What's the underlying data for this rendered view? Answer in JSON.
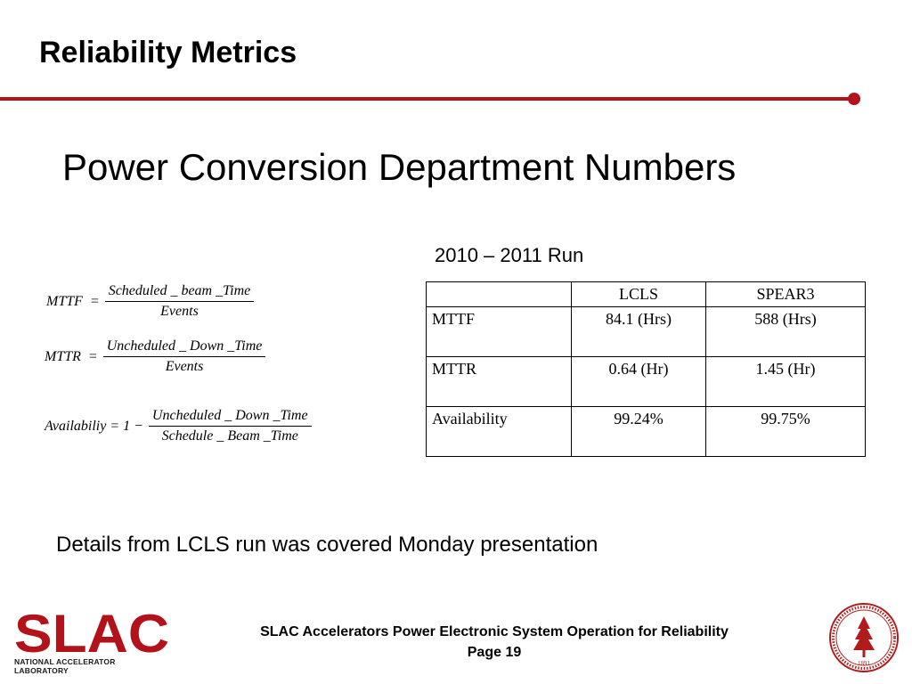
{
  "slide": {
    "title": "Reliability Metrics",
    "heading": "Power Conversion Department Numbers",
    "run_label": "2010 – 2011 Run",
    "details": "Details from LCLS run was covered Monday presentation"
  },
  "formulas": {
    "mttf": {
      "lhs": "MTTF  =",
      "numerator": "Scheduled _ beam _Time",
      "denominator": "Events"
    },
    "mttr": {
      "lhs": "MTTR  =",
      "numerator": "Uncheduled _ Down _Time",
      "denominator": "Events"
    },
    "availability": {
      "lhs": "Availabiliy = 1 −",
      "numerator": "Uncheduled _ Down _Time",
      "denominator": "Schedule _ Beam _Time"
    }
  },
  "table": {
    "headers": [
      "",
      "LCLS",
      "SPEAR3"
    ],
    "rows": [
      [
        "MTTF",
        "84.1 (Hrs)",
        "588 (Hrs)"
      ],
      [
        "MTTR",
        "0.64 (Hr)",
        "1.45 (Hr)"
      ],
      [
        "Availability",
        "99.24%",
        "99.75%"
      ]
    ]
  },
  "logo": {
    "text": "SLAC",
    "subtitle": "NATIONAL ACCELERATOR LABORATORY"
  },
  "seal": {
    "year": "1891"
  },
  "footer": {
    "line1": "SLAC Accelerators Power Electronic System Operation for Reliability",
    "line2": "Page 19"
  },
  "colors": {
    "accent": "#b3121a",
    "seal": "#b01c1c"
  }
}
